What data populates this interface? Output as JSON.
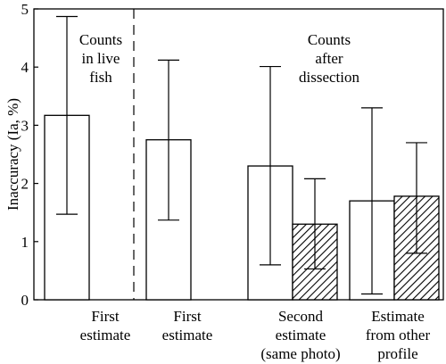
{
  "chart_data": {
    "type": "bar",
    "title": "",
    "xlabel": "",
    "ylabel": "Inaccuracy (Ia, %)",
    "ylim": [
      0,
      5
    ],
    "yticks": [
      0,
      1,
      2,
      3,
      4,
      5
    ],
    "grid": false,
    "groups": [
      {
        "label_lines": [
          "First",
          "estimate"
        ]
      },
      {
        "label_lines": [
          "First",
          "estimate"
        ]
      },
      {
        "label_lines": [
          "Second",
          "estimate",
          "(same photo)"
        ]
      },
      {
        "label_lines": [
          "Estimate",
          "from other",
          "profile"
        ]
      }
    ],
    "series": [
      {
        "fill": "open",
        "values": [
          3.17,
          2.75,
          2.3,
          1.7
        ],
        "error_low": [
          1.47,
          1.37,
          0.6,
          0.1
        ],
        "error_high": [
          4.87,
          4.12,
          4.01,
          3.3
        ]
      },
      {
        "fill": "hatched",
        "values": [
          null,
          null,
          1.3,
          1.78
        ],
        "error_low": [
          null,
          null,
          0.53,
          0.8
        ],
        "error_high": [
          null,
          null,
          2.08,
          2.7
        ]
      }
    ],
    "divider_after_group": 0,
    "annotations": [
      {
        "lines": [
          "Counts",
          "in live",
          "fish"
        ]
      },
      {
        "lines": [
          "Counts",
          "after",
          "dissection"
        ]
      }
    ]
  }
}
